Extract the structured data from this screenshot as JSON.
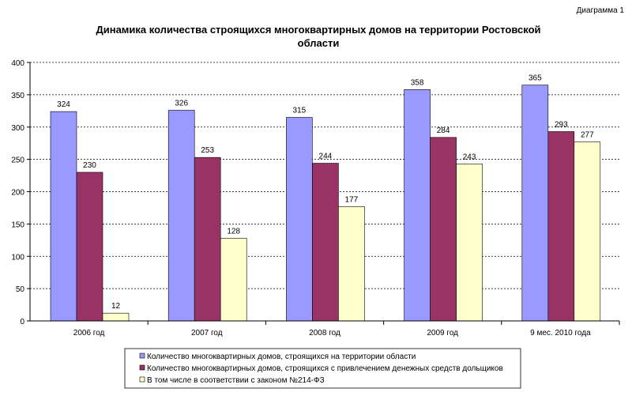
{
  "label": "Диаграмма 1",
  "chart_data": {
    "type": "bar",
    "title": "Динамика количества строящихся многоквартирных домов на территории Ростовской области",
    "title_lines": [
      "Динамика количества строящихся многоквартирных домов на территории Ростовской",
      "области"
    ],
    "categories": [
      "2006 год",
      "2007 год",
      "2008 год",
      "2009 год",
      "9 мес. 2010 года"
    ],
    "series": [
      {
        "name": "Количество многоквартирных домов, строящихся на территории области",
        "color": "#9999ff",
        "values": [
          324,
          326,
          315,
          358,
          365
        ]
      },
      {
        "name": "Количество многоквартирных домов, строящихся с привлечением денежных средств дольщиков",
        "color": "#993366",
        "values": [
          230,
          253,
          244,
          284,
          293
        ]
      },
      {
        "name": "В том числе в соответствии с законом №214-ФЗ",
        "color": "#ffffcc",
        "values": [
          12,
          128,
          177,
          243,
          277
        ]
      }
    ],
    "ylim": [
      0,
      400
    ],
    "yticks": [
      0,
      50,
      100,
      150,
      200,
      250,
      300,
      350,
      400
    ],
    "grid": true,
    "legend": "bottom"
  }
}
